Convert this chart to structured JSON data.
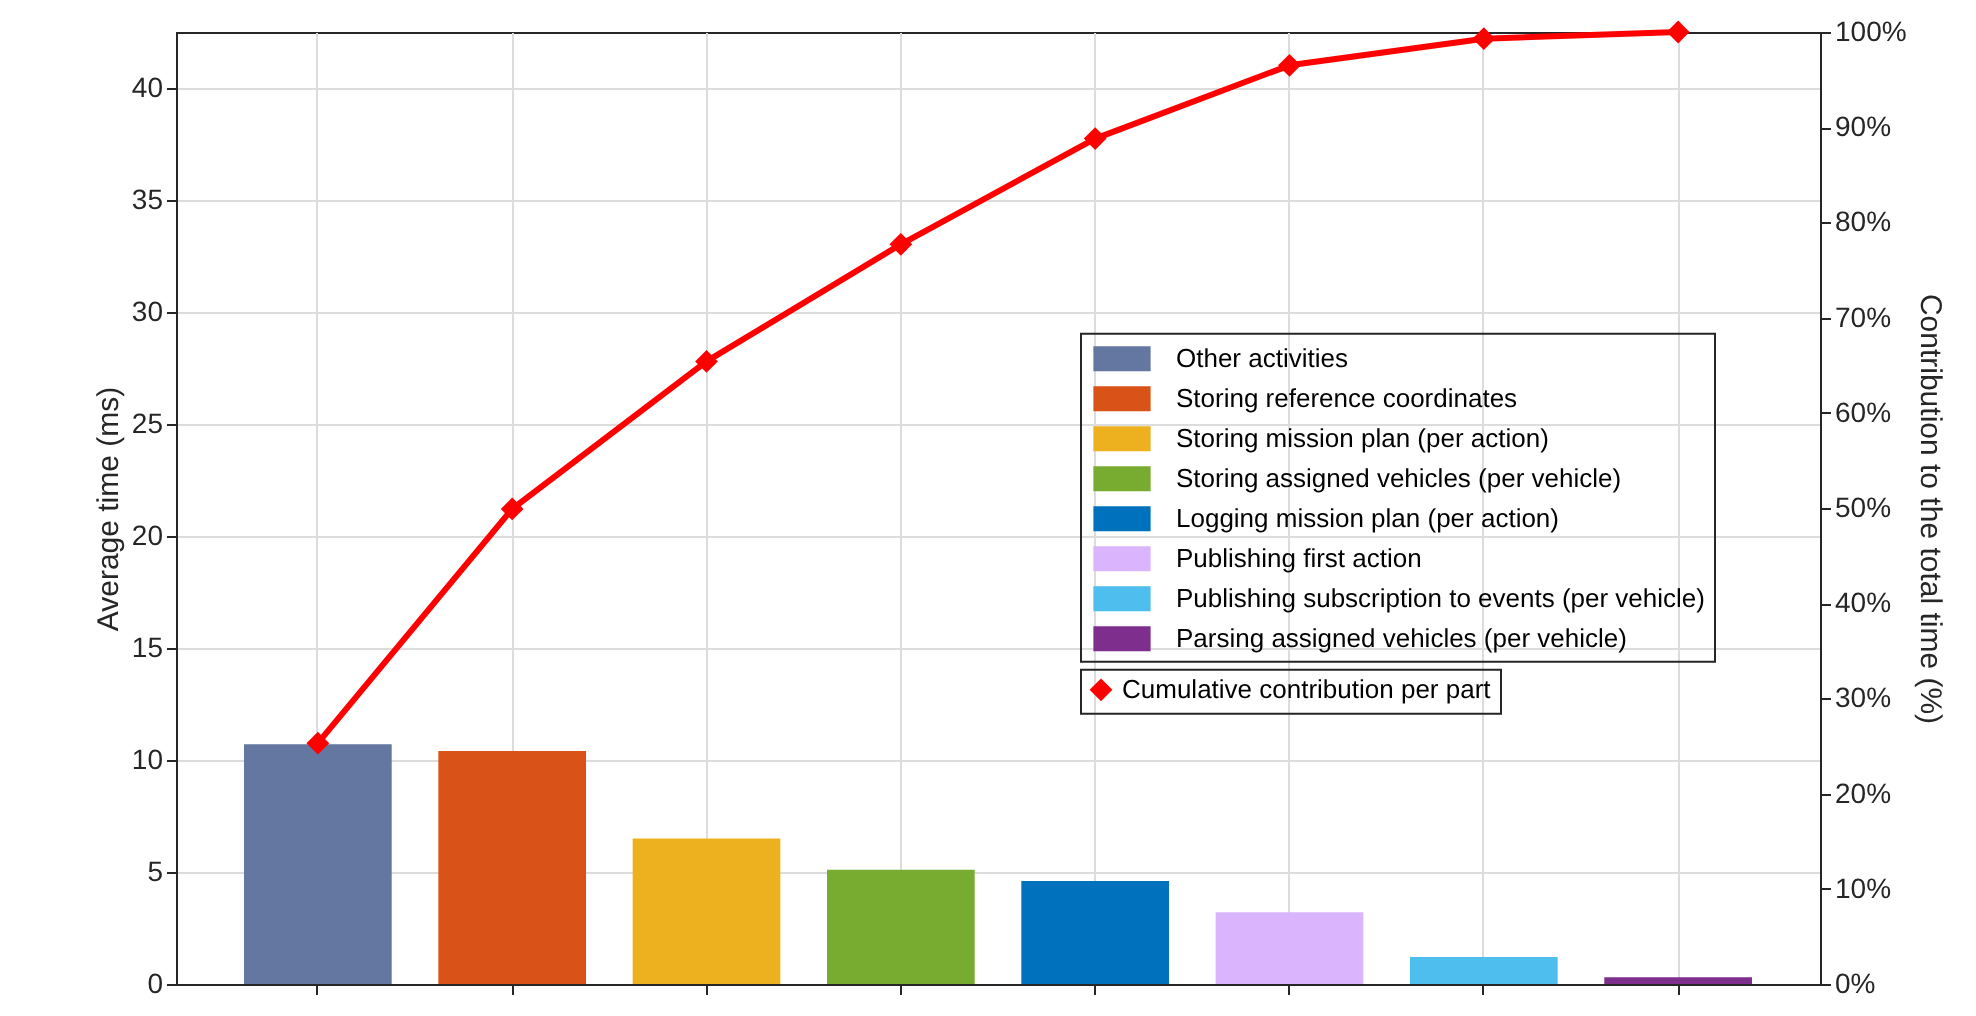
{
  "chart_data": {
    "type": "bar",
    "categories": [
      null,
      null,
      null,
      null,
      null,
      null,
      null,
      null
    ],
    "ylabel": "Average time (ms)",
    "y2label": "Contribution to the total time (%)",
    "ylim": [
      0,
      42.5
    ],
    "yticks": [
      0,
      5,
      10,
      15,
      20,
      25,
      30,
      35,
      40
    ],
    "y2lim": [
      0,
      100
    ],
    "y2ticks": [
      {
        "value": 0,
        "label": "0%"
      },
      {
        "value": 10,
        "label": "10%"
      },
      {
        "value": 20,
        "label": "20%"
      },
      {
        "value": 30,
        "label": "30%"
      },
      {
        "value": 40,
        "label": "40%"
      },
      {
        "value": 50,
        "label": "50%"
      },
      {
        "value": 60,
        "label": "60%"
      },
      {
        "value": 70,
        "label": "70%"
      },
      {
        "value": 80,
        "label": "80%"
      },
      {
        "value": 90,
        "label": "90%"
      },
      {
        "value": 100,
        "label": "100%"
      }
    ],
    "grid": true,
    "legend": "right",
    "series": [
      {
        "name": "Other activities",
        "color": "#6477a0",
        "values": [
          10.7,
          null,
          null,
          null,
          null,
          null,
          null,
          null
        ]
      },
      {
        "name": "Storing reference coordinates",
        "color": "#d95319",
        "values": [
          null,
          10.4,
          null,
          null,
          null,
          null,
          null,
          null
        ]
      },
      {
        "name": "Storing mission plan (per action)",
        "color": "#edb120",
        "values": [
          null,
          null,
          6.5,
          null,
          null,
          null,
          null,
          null
        ]
      },
      {
        "name": "Storing assigned vehicles (per vehicle)",
        "color": "#77ac30",
        "values": [
          null,
          null,
          null,
          5.1,
          null,
          null,
          null,
          null
        ]
      },
      {
        "name": "Logging mission plan (per action)",
        "color": "#0072bd",
        "values": [
          null,
          null,
          null,
          null,
          4.6,
          null,
          null,
          null
        ]
      },
      {
        "name": "Publishing first action",
        "color": "#dab4fc",
        "values": [
          null,
          null,
          null,
          null,
          null,
          3.2,
          null,
          null
        ]
      },
      {
        "name": "Publishing subscription to events (per vehicle)",
        "color": "#4dbeee",
        "values": [
          null,
          null,
          null,
          null,
          null,
          null,
          1.2,
          null
        ]
      },
      {
        "name": "Parsing assigned vehicles (per vehicle)",
        "color": "#7e2f8e",
        "values": [
          null,
          null,
          null,
          null,
          null,
          null,
          null,
          0.3
        ]
      },
      {
        "name": "Cumulative contribution per part",
        "color": "#ff0000",
        "type": "line",
        "axis": "y2",
        "marker": "diamond",
        "values": [
          25.3,
          49.9,
          65.4,
          77.7,
          88.8,
          96.5,
          99.3,
          100
        ]
      }
    ]
  }
}
